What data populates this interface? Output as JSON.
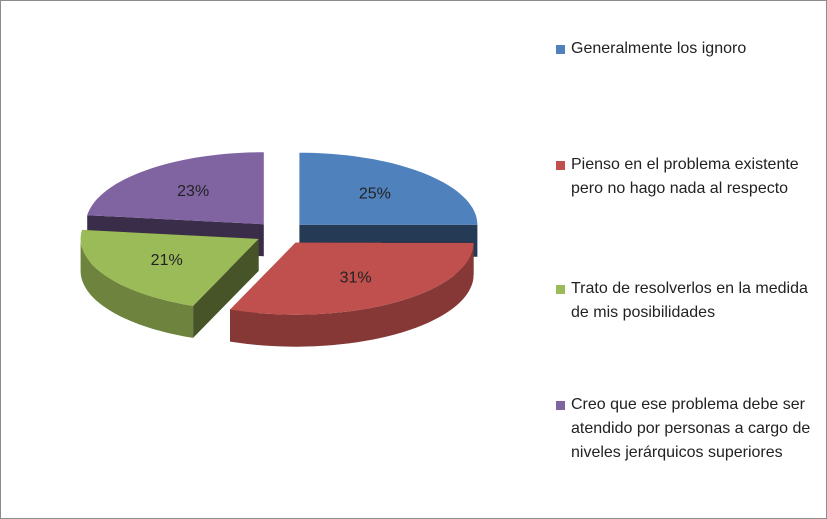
{
  "chart_data": {
    "type": "pie3d",
    "categories": [
      "Generalmente los ignoro",
      "Pienso en el problema existente pero no hago nada al respecto",
      "Trato de resolverlos en la medida de mis posibilidades",
      "Creo que ese problema debe ser atendido por personas a cargo de niveles jerárquicos superiores"
    ],
    "values": [
      25,
      31,
      21,
      23
    ],
    "value_labels": [
      "25%",
      "31%",
      "21%",
      "23%"
    ],
    "colors": [
      "#4f81bd",
      "#c0504d",
      "#9bbb59",
      "#8064a2"
    ],
    "legend": "right"
  }
}
